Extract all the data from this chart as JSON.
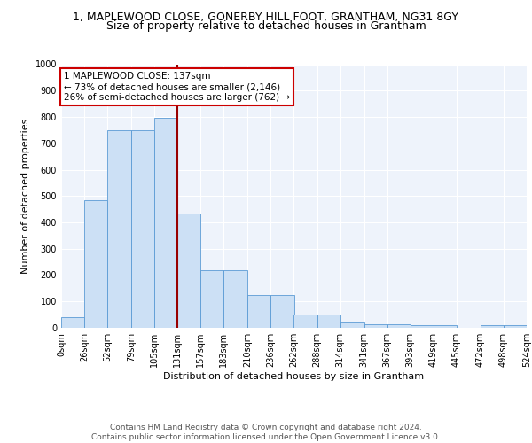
{
  "title_line1": "1, MAPLEWOOD CLOSE, GONERBY HILL FOOT, GRANTHAM, NG31 8GY",
  "title_line2": "Size of property relative to detached houses in Grantham",
  "xlabel": "Distribution of detached houses by size in Grantham",
  "ylabel": "Number of detached properties",
  "bar_edges": [
    0,
    26,
    52,
    79,
    105,
    131,
    157,
    183,
    210,
    236,
    262,
    288,
    314,
    341,
    367,
    393,
    419,
    445,
    472,
    498,
    524
  ],
  "bar_heights": [
    40,
    485,
    750,
    750,
    795,
    435,
    220,
    220,
    125,
    125,
    50,
    50,
    25,
    15,
    15,
    10,
    10,
    0,
    10,
    10
  ],
  "bar_facecolor": "#cce0f5",
  "bar_edgecolor": "#5b9bd5",
  "vline_x": 131,
  "vline_color": "#990000",
  "annotation_text": "1 MAPLEWOOD CLOSE: 137sqm\n← 73% of detached houses are smaller (2,146)\n26% of semi-detached houses are larger (762) →",
  "annotation_box_edgecolor": "#cc0000",
  "annotation_box_facecolor": "#ffffff",
  "ylim": [
    0,
    1000
  ],
  "yticks": [
    0,
    100,
    200,
    300,
    400,
    500,
    600,
    700,
    800,
    900,
    1000
  ],
  "xtick_labels": [
    "0sqm",
    "26sqm",
    "52sqm",
    "79sqm",
    "105sqm",
    "131sqm",
    "157sqm",
    "183sqm",
    "210sqm",
    "236sqm",
    "262sqm",
    "288sqm",
    "314sqm",
    "341sqm",
    "367sqm",
    "393sqm",
    "419sqm",
    "445sqm",
    "472sqm",
    "498sqm",
    "524sqm"
  ],
  "footer_text": "Contains HM Land Registry data © Crown copyright and database right 2024.\nContains public sector information licensed under the Open Government Licence v3.0.",
  "bg_color": "#eef3fb",
  "grid_color": "#ffffff",
  "title_fontsize": 9,
  "subtitle_fontsize": 9,
  "axis_label_fontsize": 8,
  "tick_fontsize": 7,
  "footer_fontsize": 6.5
}
